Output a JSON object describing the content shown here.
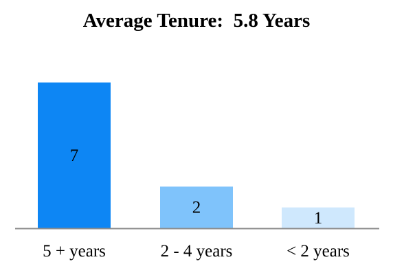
{
  "chart_data": {
    "type": "bar",
    "title": "Average Tenure:  5.8 Years",
    "categories": [
      "5 + years",
      "2 - 4 years",
      "< 2 years"
    ],
    "values": [
      7,
      2,
      1
    ],
    "data_labels": [
      "7",
      "2",
      "1"
    ],
    "colors": [
      "#0d86f4",
      "#7fc3fb",
      "#cfe8fd"
    ],
    "axis_color": "#8c8c8c",
    "xlabel": "",
    "ylabel": "",
    "ylim": [
      0,
      7
    ],
    "grid": false,
    "legend": "none"
  }
}
